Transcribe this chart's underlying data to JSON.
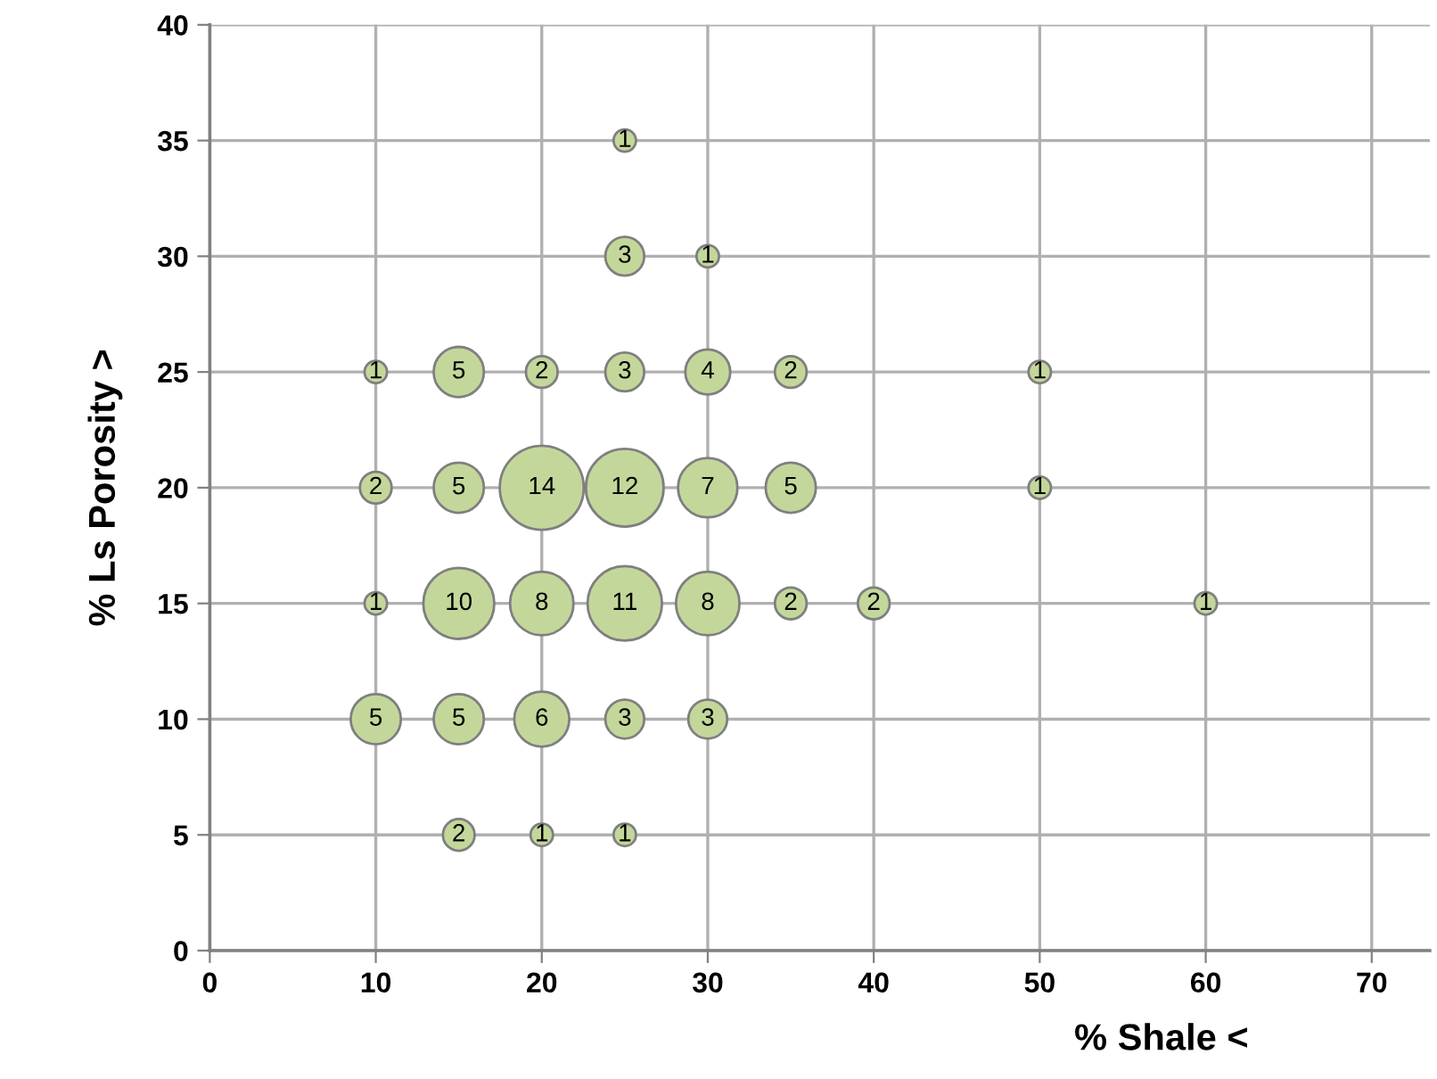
{
  "chart_data": {
    "type": "bubble",
    "xlabel": "% Shale <",
    "ylabel": "% Ls Porosity >",
    "x": [
      25,
      25,
      30,
      10,
      15,
      20,
      25,
      30,
      35,
      50,
      10,
      15,
      20,
      25,
      30,
      35,
      50,
      10,
      15,
      20,
      25,
      30,
      35,
      40,
      60,
      10,
      15,
      20,
      25,
      30,
      15,
      20,
      25
    ],
    "values": [
      35,
      30,
      30,
      25,
      25,
      25,
      25,
      25,
      25,
      25,
      20,
      20,
      20,
      20,
      20,
      20,
      20,
      15,
      15,
      15,
      15,
      15,
      15,
      15,
      15,
      10,
      10,
      10,
      10,
      10,
      5,
      5,
      5
    ],
    "sizes": [
      1,
      3,
      1,
      1,
      5,
      2,
      3,
      4,
      2,
      1,
      2,
      5,
      14,
      12,
      7,
      5,
      1,
      1,
      10,
      8,
      11,
      8,
      2,
      2,
      1,
      5,
      5,
      6,
      3,
      3,
      2,
      1,
      1
    ],
    "value_labels": [
      "1",
      "3",
      "1",
      "1",
      "5",
      "2",
      "3",
      "4",
      "2",
      "1",
      "2",
      "5",
      "14",
      "12",
      "7",
      "5",
      "1",
      "1",
      "10",
      "8",
      "11",
      "8",
      "2",
      "2",
      "1",
      "5",
      "5",
      "6",
      "3",
      "3",
      "2",
      "1",
      "1"
    ],
    "color": "#c4d79b",
    "xlim": [
      0,
      73.5
    ],
    "xticks": [
      0,
      10,
      20,
      30,
      40,
      50,
      60,
      70
    ],
    "ylim": [
      0,
      40
    ],
    "yticks": [
      0,
      5,
      10,
      15,
      20,
      25,
      30,
      35,
      40
    ],
    "grid": true
  }
}
